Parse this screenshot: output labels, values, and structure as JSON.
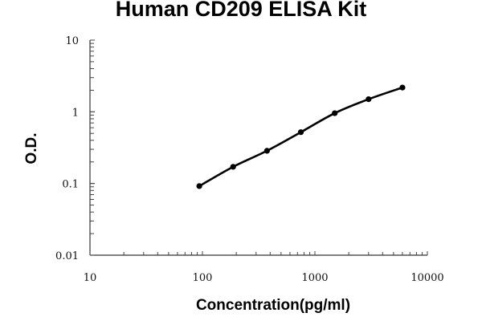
{
  "chart_data": {
    "type": "line",
    "title": "Human CD209 ELISA Kit",
    "xlabel": "Concentration(pg/ml)",
    "ylabel": "O.D.",
    "x_scale": "log",
    "y_scale": "log",
    "xlim": [
      10,
      10000
    ],
    "ylim": [
      0.01,
      10
    ],
    "x_ticks": [
      "10",
      "100",
      "1000",
      "10000"
    ],
    "y_ticks": [
      "0.01",
      "0.1",
      "1",
      "10"
    ],
    "grid": false,
    "series": [
      {
        "x": [
          93.75,
          187.5,
          375,
          750,
          1500,
          3000,
          6000
        ],
        "y": [
          0.092,
          0.171,
          0.286,
          0.52,
          0.957,
          1.5,
          2.18
        ],
        "color": "#000000",
        "marker": "circle"
      }
    ]
  }
}
